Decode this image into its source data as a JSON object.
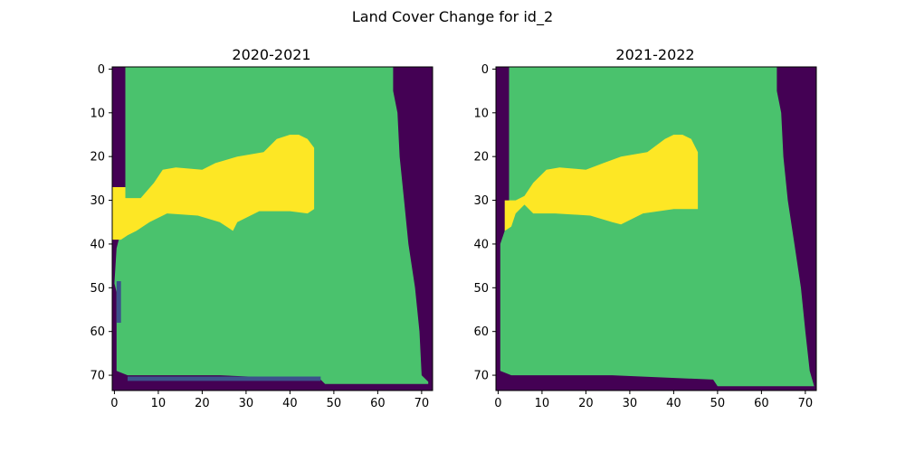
{
  "figure": {
    "title": "Land Cover Change for id_2"
  },
  "colors": {
    "class_0": "#440154",
    "class_1": "#3b528b",
    "class_2": "#21918c",
    "class_3": "#4ac26d",
    "class_4": "#fde725",
    "axis": "#000000"
  },
  "chart_data": [
    {
      "type": "heatmap",
      "title": "2020-2021",
      "xlabel": "",
      "ylabel": "",
      "xlim": [
        -0.5,
        72.5
      ],
      "ylim": [
        73.5,
        -0.5
      ],
      "xticks": [
        0,
        10,
        20,
        30,
        40,
        50,
        60,
        70
      ],
      "yticks": [
        0,
        10,
        20,
        30,
        40,
        50,
        60,
        70
      ],
      "grid": false,
      "colormap": "viridis",
      "value_range": [
        0,
        4
      ],
      "grid_size": {
        "cols": 73,
        "rows": 74
      },
      "regions": [
        {
          "label": "background",
          "value": 0,
          "x": [
            -0.5,
            72.5
          ],
          "y": [
            -0.5,
            73.5
          ]
        },
        {
          "label": "vegetation",
          "value": 3,
          "polygon": [
            [
              2.5,
              -0.5
            ],
            [
              63.5,
              -0.5
            ],
            [
              63.5,
              5
            ],
            [
              64.5,
              10
            ],
            [
              65,
              20
            ],
            [
              66,
              30
            ],
            [
              67,
              40
            ],
            [
              68.5,
              50
            ],
            [
              69.5,
              60
            ],
            [
              70,
              70
            ],
            [
              71.5,
              71.5
            ],
            [
              71.5,
              72
            ],
            [
              48,
              72
            ],
            [
              47,
              71
            ],
            [
              24,
              70
            ],
            [
              3,
              70
            ],
            [
              0.5,
              69
            ],
            [
              0.5,
              51
            ],
            [
              0,
              49
            ],
            [
              0.5,
              41
            ],
            [
              1.5,
              37
            ],
            [
              2.5,
              30
            ],
            [
              2.5,
              -0.5
            ]
          ]
        },
        {
          "label": "edge_strip",
          "value": 1,
          "x": [
            0.5,
            1.5
          ],
          "y": [
            48.5,
            58
          ]
        },
        {
          "label": "bottom_strip",
          "value": 1,
          "x": [
            3,
            47
          ],
          "y": [
            70.3,
            71.3
          ]
        },
        {
          "label": "bare",
          "value": 4,
          "polygon": [
            [
              -0.5,
              27
            ],
            [
              2.5,
              27
            ],
            [
              2.5,
              29.5
            ],
            [
              6,
              29.5
            ],
            [
              9,
              26
            ],
            [
              11,
              23
            ],
            [
              14,
              22.5
            ],
            [
              20,
              23
            ],
            [
              23,
              21.5
            ],
            [
              28,
              20
            ],
            [
              34,
              19
            ],
            [
              37,
              16
            ],
            [
              40,
              15
            ],
            [
              42,
              15
            ],
            [
              44,
              16
            ],
            [
              45.5,
              18
            ],
            [
              45.5,
              32
            ],
            [
              44,
              33
            ],
            [
              40,
              32.5
            ],
            [
              33,
              32.5
            ],
            [
              28,
              35
            ],
            [
              27,
              37
            ],
            [
              24,
              35
            ],
            [
              19,
              33.5
            ],
            [
              12,
              33
            ],
            [
              8,
              35
            ],
            [
              5,
              37
            ],
            [
              3,
              38
            ],
            [
              1.5,
              39
            ],
            [
              -0.5,
              39
            ]
          ]
        }
      ]
    },
    {
      "type": "heatmap",
      "title": "2021-2022",
      "xlabel": "",
      "ylabel": "",
      "xlim": [
        -0.5,
        72.5
      ],
      "ylim": [
        73.5,
        -0.5
      ],
      "xticks": [
        0,
        10,
        20,
        30,
        40,
        50,
        60,
        70
      ],
      "yticks": [
        0,
        10,
        20,
        30,
        40,
        50,
        60,
        70
      ],
      "grid": false,
      "colormap": "viridis",
      "value_range": [
        0,
        4
      ],
      "grid_size": {
        "cols": 73,
        "rows": 74
      },
      "regions": [
        {
          "label": "background",
          "value": 0,
          "x": [
            -0.5,
            72.5
          ],
          "y": [
            -0.5,
            73.5
          ]
        },
        {
          "label": "vegetation",
          "value": 3,
          "polygon": [
            [
              2.5,
              -0.5
            ],
            [
              63.5,
              -0.5
            ],
            [
              63.5,
              5
            ],
            [
              64.5,
              10
            ],
            [
              65,
              20
            ],
            [
              66,
              30
            ],
            [
              67.5,
              40
            ],
            [
              69,
              50
            ],
            [
              70,
              60
            ],
            [
              71,
              69
            ],
            [
              72,
              72.5
            ],
            [
              50,
              72.5
            ],
            [
              49,
              71
            ],
            [
              26,
              70
            ],
            [
              3,
              70
            ],
            [
              0.5,
              69
            ],
            [
              0.5,
              40
            ],
            [
              1.5,
              37
            ],
            [
              2.5,
              30
            ],
            [
              2.5,
              -0.5
            ]
          ]
        },
        {
          "label": "bare",
          "value": 4,
          "polygon": [
            [
              1.5,
              30
            ],
            [
              4,
              30
            ],
            [
              6,
              29
            ],
            [
              8,
              26
            ],
            [
              11,
              23
            ],
            [
              14,
              22.5
            ],
            [
              20,
              23
            ],
            [
              24,
              21.5
            ],
            [
              28,
              20
            ],
            [
              34,
              19
            ],
            [
              38,
              16
            ],
            [
              40,
              15
            ],
            [
              42,
              15
            ],
            [
              44,
              16
            ],
            [
              45.5,
              19
            ],
            [
              45.5,
              32
            ],
            [
              44,
              32
            ],
            [
              40,
              32
            ],
            [
              33,
              33
            ],
            [
              28,
              35.5
            ],
            [
              26,
              35
            ],
            [
              21,
              33.5
            ],
            [
              13,
              33
            ],
            [
              8,
              33
            ],
            [
              6,
              31
            ],
            [
              4,
              33
            ],
            [
              3,
              36
            ],
            [
              1.5,
              37
            ]
          ]
        }
      ]
    }
  ]
}
